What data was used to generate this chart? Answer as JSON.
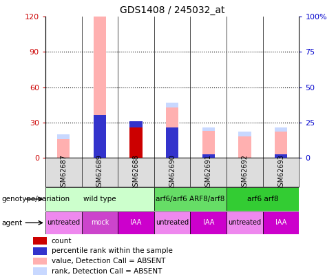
{
  "title": "GDS1408 / 245032_at",
  "samples": [
    "GSM62687",
    "GSM62689",
    "GSM62688",
    "GSM62690",
    "GSM62691",
    "GSM62692",
    "GSM62693"
  ],
  "bars": {
    "value_absent": [
      20,
      120,
      0,
      47,
      26,
      22,
      26
    ],
    "rank_absent_top": [
      4,
      0,
      4,
      4,
      3,
      4,
      4
    ],
    "rank_absent_base": [
      16,
      120,
      0,
      43,
      23,
      18,
      22
    ],
    "count": [
      0,
      0,
      26,
      0,
      0,
      0,
      0
    ],
    "percentile_base": [
      0,
      0,
      26,
      0,
      0,
      0,
      0
    ],
    "percentile": [
      0,
      36,
      5,
      26,
      3,
      0,
      3
    ]
  },
  "bar_colors": {
    "value_absent": "#FFB0B0",
    "rank_absent": "#C8D8FF",
    "count": "#CC0000",
    "percentile": "#3333CC"
  },
  "ylim_left": [
    0,
    120
  ],
  "ylim_right": [
    0,
    100
  ],
  "yticks_left": [
    0,
    30,
    60,
    90,
    120
  ],
  "ytick_labels_left": [
    "0",
    "30",
    "60",
    "90",
    "120"
  ],
  "yticks_right": [
    0,
    25,
    50,
    75,
    100
  ],
  "ytick_labels_right": [
    "0",
    "25",
    "50",
    "75",
    "100%"
  ],
  "left_tick_color": "#CC0000",
  "right_tick_color": "#0000CC",
  "genotype_groups": [
    {
      "label": "wild type",
      "start": 0,
      "end": 2,
      "color": "#CCFFCC"
    },
    {
      "label": "arf6/arf6 ARF8/arf8",
      "start": 3,
      "end": 4,
      "color": "#66DD66"
    },
    {
      "label": "arf6 arf8",
      "start": 5,
      "end": 6,
      "color": "#33CC33"
    }
  ],
  "agent_groups": [
    {
      "label": "untreated",
      "start": 0,
      "end": 0,
      "color": "#EE88EE"
    },
    {
      "label": "mock",
      "start": 1,
      "end": 1,
      "color": "#CC44CC"
    },
    {
      "label": "IAA",
      "start": 2,
      "end": 2,
      "color": "#CC00CC"
    },
    {
      "label": "untreated",
      "start": 3,
      "end": 3,
      "color": "#EE88EE"
    },
    {
      "label": "IAA",
      "start": 4,
      "end": 4,
      "color": "#CC00CC"
    },
    {
      "label": "untreated",
      "start": 5,
      "end": 5,
      "color": "#EE88EE"
    },
    {
      "label": "IAA",
      "start": 6,
      "end": 6,
      "color": "#CC00CC"
    }
  ],
  "legend_items": [
    {
      "label": "count",
      "color": "#CC0000"
    },
    {
      "label": "percentile rank within the sample",
      "color": "#3333CC"
    },
    {
      "label": "value, Detection Call = ABSENT",
      "color": "#FFB0B0"
    },
    {
      "label": "rank, Detection Call = ABSENT",
      "color": "#C8D8FF"
    }
  ],
  "bar_width": 0.35,
  "fig_width": 4.88,
  "fig_height": 4.05,
  "fig_dpi": 100
}
